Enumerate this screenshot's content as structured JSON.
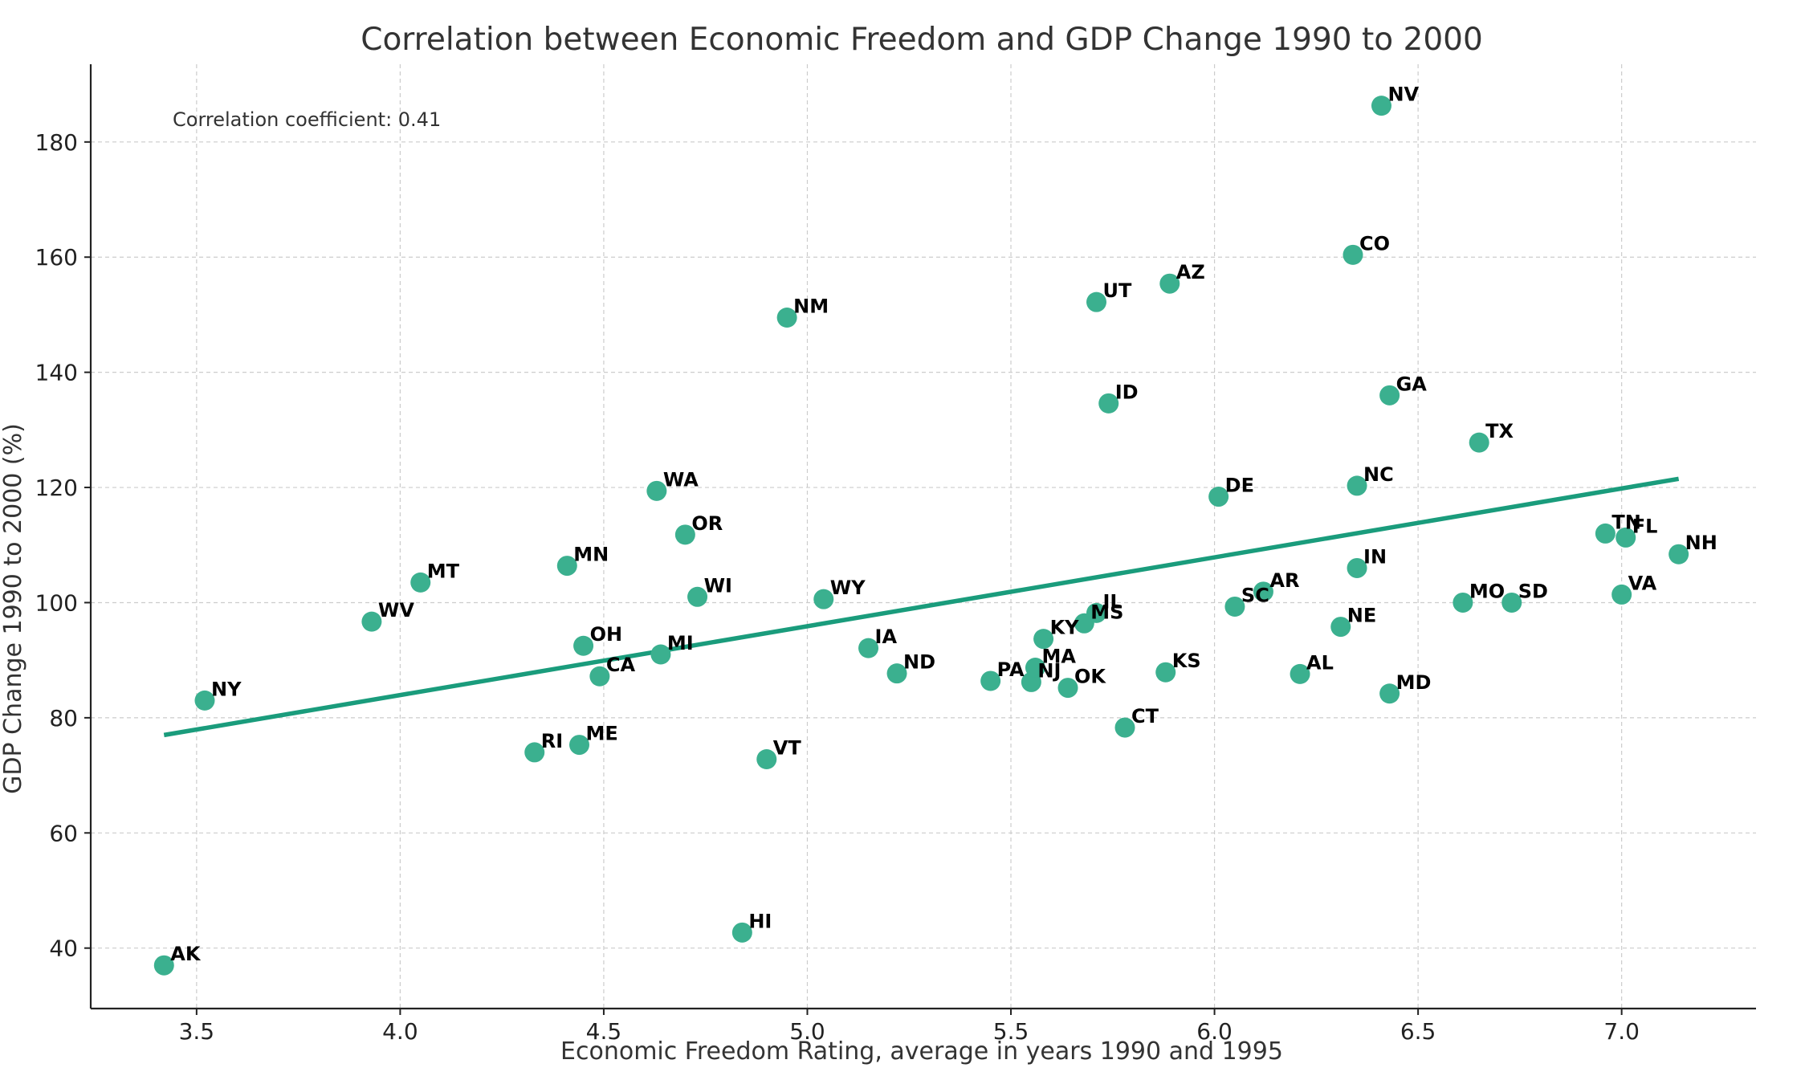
{
  "chart_data": {
    "type": "scatter",
    "title": "Correlation between Economic Freedom and GDP Change 1990 to 2000",
    "xlabel": "Economic Freedom Rating, average in years 1990 and 1995",
    "ylabel": "GDP Change 1990 to 2000 (%)",
    "annotation": "Correlation coefficient: 0.41",
    "xlim": [
      3.24,
      7.33
    ],
    "ylim": [
      29.5,
      193.5
    ],
    "xticks": [
      "3.5",
      "4.0",
      "4.5",
      "5.0",
      "5.5",
      "6.0",
      "6.5",
      "7.0"
    ],
    "yticks": [
      "40",
      "60",
      "80",
      "100",
      "120",
      "140",
      "160",
      "180"
    ],
    "grid": true,
    "point_color": "#3bb08f",
    "line_color": "#1a9c7c",
    "trendline": {
      "x": [
        3.42,
        7.14
      ],
      "y": [
        77.0,
        121.5
      ]
    },
    "points": [
      {
        "label": "AK",
        "x": 3.42,
        "y": 37.0
      },
      {
        "label": "NY",
        "x": 3.52,
        "y": 83.0
      },
      {
        "label": "WV",
        "x": 3.93,
        "y": 96.7
      },
      {
        "label": "MT",
        "x": 4.05,
        "y": 103.5
      },
      {
        "label": "RI",
        "x": 4.33,
        "y": 74.0
      },
      {
        "label": "MN",
        "x": 4.41,
        "y": 106.4
      },
      {
        "label": "ME",
        "x": 4.44,
        "y": 75.3
      },
      {
        "label": "OH",
        "x": 4.45,
        "y": 92.5
      },
      {
        "label": "CA",
        "x": 4.49,
        "y": 87.2
      },
      {
        "label": "WA",
        "x": 4.63,
        "y": 119.4
      },
      {
        "label": "MI",
        "x": 4.64,
        "y": 91.0
      },
      {
        "label": "OR",
        "x": 4.7,
        "y": 111.8
      },
      {
        "label": "WI",
        "x": 4.73,
        "y": 101.0
      },
      {
        "label": "HI",
        "x": 4.84,
        "y": 42.7
      },
      {
        "label": "VT",
        "x": 4.9,
        "y": 72.8
      },
      {
        "label": "NM",
        "x": 4.95,
        "y": 149.5
      },
      {
        "label": "WY",
        "x": 5.04,
        "y": 100.6
      },
      {
        "label": "IA",
        "x": 5.15,
        "y": 92.1
      },
      {
        "label": "ND",
        "x": 5.22,
        "y": 87.7
      },
      {
        "label": "PA",
        "x": 5.45,
        "y": 86.4
      },
      {
        "label": "NJ",
        "x": 5.55,
        "y": 86.2
      },
      {
        "label": "MA",
        "x": 5.56,
        "y": 88.7
      },
      {
        "label": "KY",
        "x": 5.58,
        "y": 93.7
      },
      {
        "label": "OK",
        "x": 5.64,
        "y": 85.2
      },
      {
        "label": "MS",
        "x": 5.68,
        "y": 96.4
      },
      {
        "label": "IL",
        "x": 5.71,
        "y": 98.2
      },
      {
        "label": "UT",
        "x": 5.71,
        "y": 152.2
      },
      {
        "label": "ID",
        "x": 5.74,
        "y": 134.6
      },
      {
        "label": "CT",
        "x": 5.78,
        "y": 78.3
      },
      {
        "label": "KS",
        "x": 5.88,
        "y": 87.9
      },
      {
        "label": "AZ",
        "x": 5.89,
        "y": 155.4
      },
      {
        "label": "DE",
        "x": 6.01,
        "y": 118.4
      },
      {
        "label": "SC",
        "x": 6.05,
        "y": 99.3
      },
      {
        "label": "AR",
        "x": 6.12,
        "y": 101.9
      },
      {
        "label": "AL",
        "x": 6.21,
        "y": 87.6
      },
      {
        "label": "NE",
        "x": 6.31,
        "y": 95.8
      },
      {
        "label": "CO",
        "x": 6.34,
        "y": 160.4
      },
      {
        "label": "IN",
        "x": 6.35,
        "y": 106.0
      },
      {
        "label": "NC",
        "x": 6.35,
        "y": 120.3
      },
      {
        "label": "NV",
        "x": 6.41,
        "y": 186.3
      },
      {
        "label": "GA",
        "x": 6.43,
        "y": 136.0
      },
      {
        "label": "MD",
        "x": 6.43,
        "y": 84.2
      },
      {
        "label": "MO",
        "x": 6.61,
        "y": 100.0
      },
      {
        "label": "TX",
        "x": 6.65,
        "y": 127.8
      },
      {
        "label": "SD",
        "x": 6.73,
        "y": 100.0
      },
      {
        "label": "TN",
        "x": 6.96,
        "y": 112.0
      },
      {
        "label": "VA",
        "x": 7.0,
        "y": 101.4
      },
      {
        "label": "FL",
        "x": 7.01,
        "y": 111.3
      },
      {
        "label": "NH",
        "x": 7.14,
        "y": 108.4
      }
    ]
  }
}
